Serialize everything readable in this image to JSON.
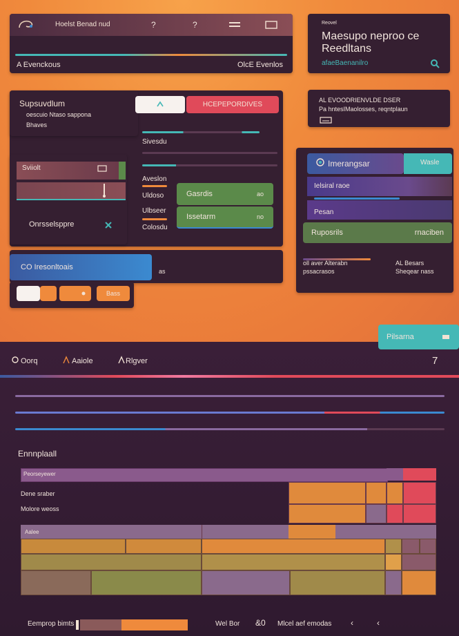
{
  "colors": {
    "accent_orange": "#ef8a3c",
    "panel_dark": "#351f31",
    "teal": "#45b8b6",
    "red": "#e04a5a",
    "green": "#5b8a4a",
    "blue": "#3b8ad0",
    "purple": "#6a4a8c"
  },
  "top_panel": {
    "title": "Hoelst Benad nud",
    "controls": [
      "?",
      "?"
    ],
    "status_left": "A Evenckous",
    "status_right": "OlcE Evenlos"
  },
  "info_card": {
    "kicker": "Reovel",
    "title_line1": "Maesupo neproo ce",
    "title_line2": "Reedltans",
    "link": "afaeBaenanilro"
  },
  "suprem_panel": {
    "title": "Supsuvdlum",
    "line1": "oescuio Ntaso sappona",
    "line2": "Bhaves",
    "button_label": "HCEPEPORDIVES",
    "slider_label1": "Sivesdu",
    "section_label": "Aveslon",
    "field_label1": "Uldoso",
    "field_label2": "Ulbseer",
    "field_label3": "Colosdu",
    "green_btn1": "Gasrdis",
    "green_btn2": "Issetarm",
    "green_btn_value1": "ao",
    "green_btn_value2": "no"
  },
  "left_small": {
    "title": "Sviiolt",
    "footer_label": "Onrsselsppre"
  },
  "side_card": {
    "line1": "AL EVOODRIENVLDE DSER",
    "line2": "Pa hntesIMaolosses, reqntplaun"
  },
  "lang_panel": {
    "item1": "Imerangsar",
    "item1_badge": "Wasle",
    "item2": "Ielsiral raoe",
    "item3": "Pesan",
    "green_btn": "Ruposrils",
    "green_btn_value": "rnaciben",
    "foot_left1": "oll aver Alterabn",
    "foot_left2": "pssacrasos",
    "foot_right1": "AL Besars",
    "foot_right2": "Sheqear nass"
  },
  "blue_panel": {
    "title": "CO Iresonltoais",
    "side_value": "as",
    "btn_orange2_label": "Bass"
  },
  "tab_badge": "Pilsarna",
  "toolbar": {
    "items": [
      "Oorq",
      "Aaiole",
      "Rlgver"
    ],
    "page_num": "7"
  },
  "table": {
    "title": "Ennnplaall",
    "header_label": "Peorseyewer",
    "row1": "Dene sraber",
    "row2": "Molore weoss",
    "section_label": "Aalee"
  },
  "footer": {
    "left_label": "Eemprop bimts",
    "center_label": "Wel Bor",
    "mid_glyph": "&0",
    "right_label": "Mlcel aef emodas",
    "glyph_a": "‹",
    "glyph_b": "‹"
  }
}
